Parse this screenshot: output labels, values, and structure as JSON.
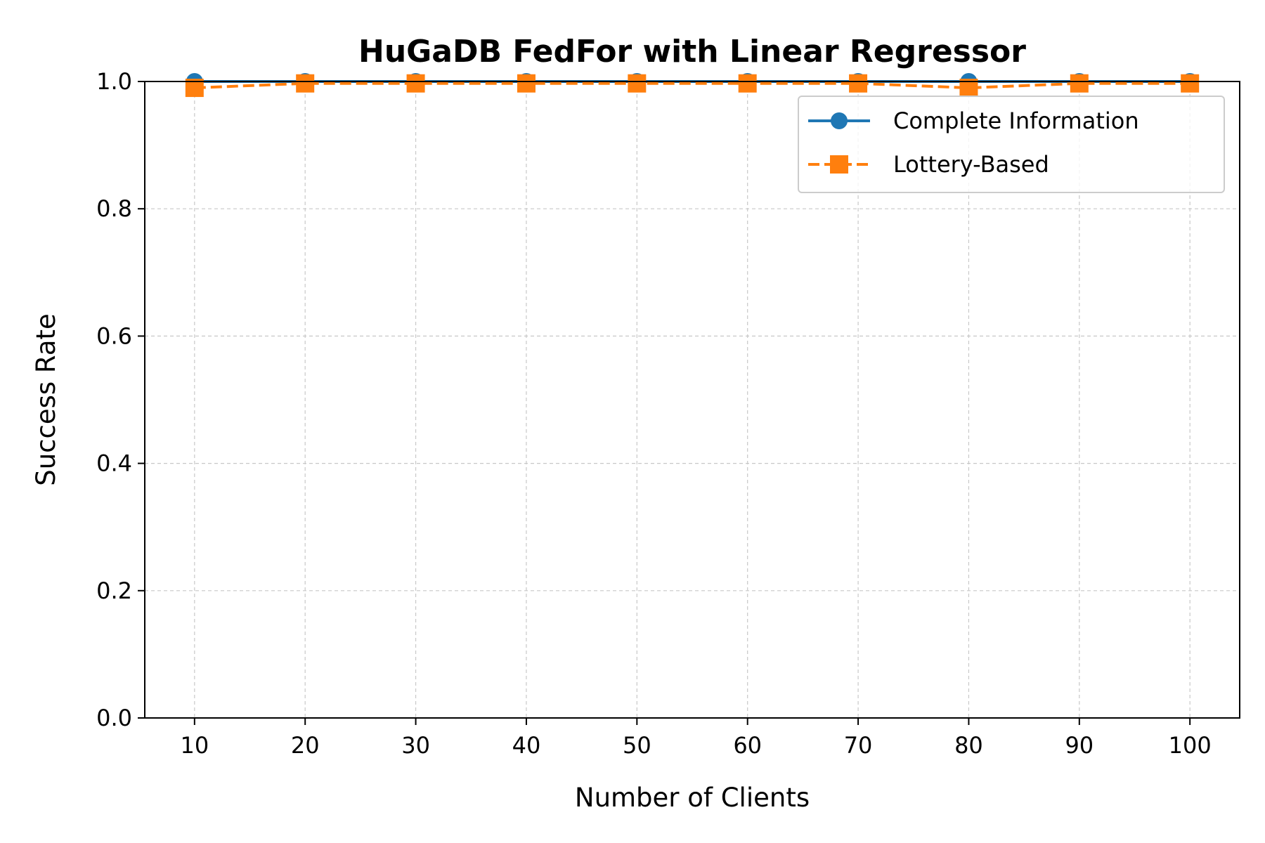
{
  "chart_data": {
    "type": "line",
    "title": "HuGaDB FedFor with Linear Regressor",
    "xlabel": "Number of Clients",
    "ylabel": "Success Rate",
    "x": [
      10,
      20,
      30,
      40,
      50,
      60,
      70,
      80,
      90,
      100
    ],
    "xticks": [
      "10",
      "20",
      "30",
      "40",
      "50",
      "60",
      "70",
      "80",
      "90",
      "100"
    ],
    "yticks": [
      "0.0",
      "0.2",
      "0.4",
      "0.6",
      "0.8",
      "1.0"
    ],
    "xlim": [
      5.5,
      104.5
    ],
    "ylim": [
      0.0,
      1.0
    ],
    "grid": true,
    "legend_position": "upper-right",
    "series": [
      {
        "name": "Complete Information",
        "color": "#1f77b4",
        "marker": "circle",
        "linestyle": "solid",
        "values": [
          1.0,
          1.0,
          1.0,
          1.0,
          1.0,
          1.0,
          1.0,
          1.0,
          1.0,
          1.0
        ]
      },
      {
        "name": "Lottery-Based",
        "color": "#ff7f0e",
        "marker": "square",
        "linestyle": "dashed",
        "values": [
          0.99,
          0.997,
          0.997,
          0.997,
          0.997,
          0.997,
          0.997,
          0.99,
          0.997,
          0.997
        ]
      }
    ]
  }
}
